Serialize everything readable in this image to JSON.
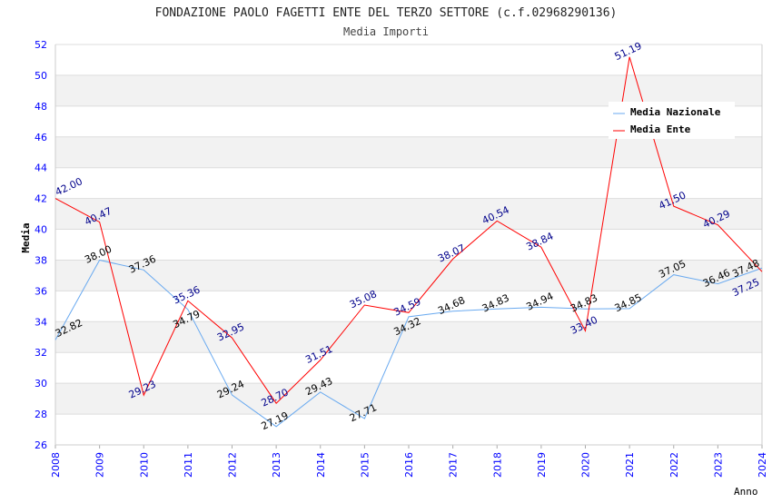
{
  "chart_data": {
    "type": "line",
    "title": "FONDAZIONE PAOLO FAGETTI ENTE DEL TERZO SETTORE (c.f.02968290136)",
    "subtitle": "Media Importi",
    "xlabel": "Anno",
    "ylabel": "Media",
    "ylim": [
      26,
      52
    ],
    "yticks": [
      26,
      28,
      30,
      32,
      34,
      36,
      38,
      40,
      42,
      44,
      46,
      48,
      50,
      52
    ],
    "x": [
      2008,
      2009,
      2010,
      2011,
      2012,
      2013,
      2014,
      2015,
      2016,
      2017,
      2018,
      2019,
      2020,
      2021,
      2022,
      2023,
      2024
    ],
    "legend_position": "top-right",
    "series": [
      {
        "name": "Media Nazionale",
        "color": "#6aaaf0",
        "label_color": "#000000",
        "values": [
          32.82,
          38.0,
          37.36,
          34.79,
          29.24,
          27.19,
          29.43,
          27.71,
          34.32,
          34.68,
          34.83,
          34.94,
          34.83,
          34.85,
          37.05,
          36.46,
          37.48
        ]
      },
      {
        "name": "Media Ente",
        "color": "#ff0000",
        "label_color": "#00008b",
        "values": [
          42.0,
          40.47,
          29.23,
          35.36,
          32.95,
          28.7,
          31.51,
          35.08,
          34.59,
          38.07,
          40.54,
          38.84,
          33.4,
          51.19,
          41.5,
          40.29,
          37.25
        ]
      }
    ]
  }
}
